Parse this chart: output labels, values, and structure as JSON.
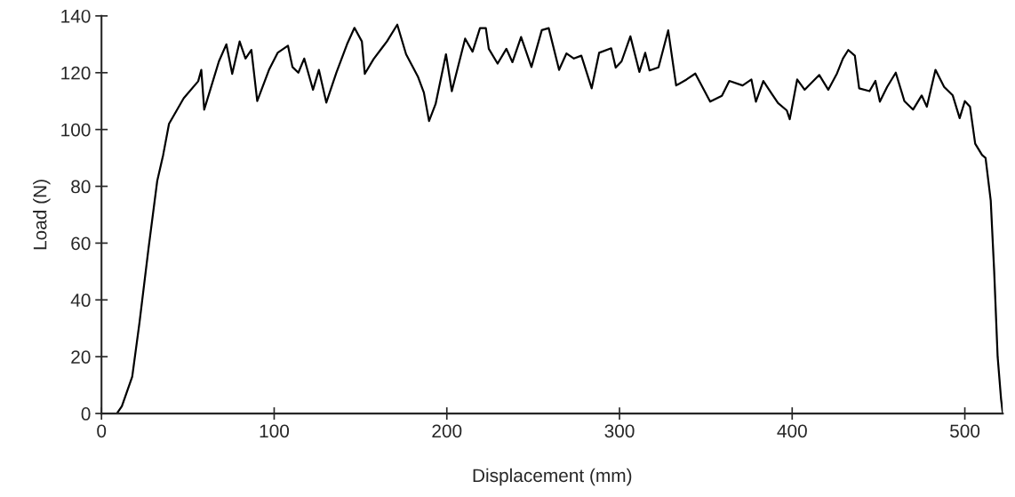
{
  "chart_data": {
    "type": "line",
    "xlabel": "Displacement (mm)",
    "ylabel": "Load (N)",
    "xlim": [
      0,
      522
    ],
    "ylim": [
      0,
      140
    ],
    "xticks": [
      0,
      100,
      200,
      300,
      400,
      500
    ],
    "yticks": [
      0,
      20,
      40,
      60,
      80,
      100,
      120,
      140
    ],
    "grid": false,
    "marker": "none",
    "line_style": "solid",
    "series": [
      {
        "color": "#000000",
        "x": [
          0,
          8.9,
          11.8,
          17.8,
          22,
          27.2,
          32.3,
          35.7,
          39.1,
          47.6,
          56,
          57.8,
          59.5,
          63,
          68,
          72.3,
          75.7,
          80,
          83.4,
          86.8,
          90.2,
          97,
          102,
          108,
          110.6,
          114,
          117.4,
          122.5,
          125.9,
          130.2,
          136,
          142.2,
          146.5,
          150.8,
          152.5,
          157.6,
          162.8,
          165.3,
          171.3,
          176.4,
          183.2,
          186.7,
          189.7,
          193.5,
          199.5,
          202.9,
          210.6,
          214.9,
          219.2,
          222.6,
          224.3,
          229.4,
          234.5,
          238,
          243,
          249,
          255,
          259,
          265,
          269.3,
          273.6,
          277.9,
          283.9,
          288.2,
          295.2,
          297.8,
          301.2,
          306.3,
          311.5,
          314.9,
          317.4,
          322.6,
          328.2,
          332.8,
          338.8,
          343.9,
          352.5,
          359.3,
          363.6,
          371.3,
          376.4,
          379,
          383.3,
          388.4,
          391.8,
          396.9,
          398.6,
          402.9,
          407.2,
          415.7,
          420.9,
          426,
          429.4,
          432.5,
          436.3,
          438.8,
          444.8,
          448.2,
          450.8,
          455,
          460,
          465,
          470,
          475,
          478,
          483,
          488,
          493,
          497,
          500,
          503,
          506,
          510,
          512,
          515,
          517,
          519,
          521,
          522
        ],
        "values": [
          0,
          0,
          2.6,
          13,
          32,
          58,
          82,
          91,
          102,
          111,
          117,
          121,
          107,
          114,
          124,
          130,
          119.6,
          131,
          125,
          128,
          110,
          121,
          127,
          129.5,
          122,
          120,
          125,
          114,
          121,
          109.5,
          120,
          130,
          135.8,
          131,
          119.6,
          124.8,
          129,
          131,
          136.9,
          126.5,
          118.7,
          113,
          103,
          109,
          126.5,
          113.5,
          132,
          127.4,
          135.7,
          135.7,
          128.4,
          123.2,
          128.4,
          123.7,
          132.6,
          122,
          135,
          135.7,
          121,
          126.8,
          125,
          126,
          114.5,
          127,
          128.6,
          121.8,
          124,
          132.8,
          120.3,
          127,
          120.8,
          121.9,
          134.9,
          115.5,
          117.6,
          119.7,
          109.8,
          111.9,
          117.1,
          115.5,
          117.6,
          109.8,
          117.1,
          112.4,
          109.3,
          106.7,
          103.6,
          117.6,
          114,
          119.2,
          114,
          119.8,
          125,
          128,
          126,
          114.5,
          113.5,
          117.1,
          109.8,
          115,
          120,
          110,
          107,
          112,
          108,
          121,
          115,
          112,
          104,
          110,
          108,
          95,
          91,
          90,
          75,
          50,
          20,
          5,
          0
        ]
      }
    ]
  }
}
